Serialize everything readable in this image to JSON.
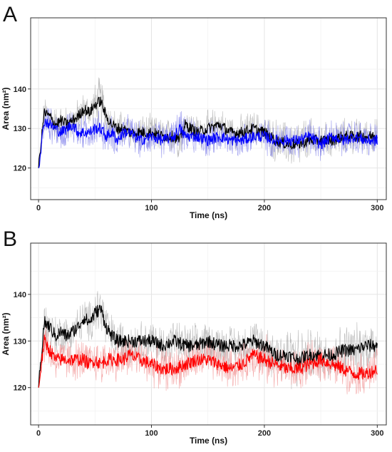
{
  "chart_data": [
    {
      "type": "line",
      "panel_label": "A",
      "xlabel": "Time (ns)",
      "ylabel": "Area (nm²)",
      "xlim": [
        -7,
        308
      ],
      "ylim": [
        112,
        158
      ],
      "xticks": [
        0,
        100,
        200,
        300
      ],
      "yticks": [
        120,
        130,
        140
      ],
      "grid": true,
      "legend": "none",
      "series": [
        {
          "color": "#000000",
          "shade_color": "#a6a6a6",
          "x": [
            0,
            5,
            10,
            15,
            20,
            25,
            30,
            35,
            40,
            45,
            50,
            55,
            60,
            65,
            70,
            75,
            80,
            90,
            100,
            110,
            120,
            125,
            130,
            140,
            150,
            160,
            170,
            180,
            190,
            200,
            210,
            220,
            230,
            240,
            250,
            260,
            270,
            280,
            290,
            300
          ],
          "values": [
            120,
            134,
            133,
            131,
            132,
            131,
            132,
            133,
            135,
            134,
            136,
            137,
            133,
            131,
            130,
            130,
            129,
            129,
            129,
            128,
            128,
            127,
            131,
            129,
            130,
            131,
            129,
            129,
            130,
            129,
            127,
            126,
            126,
            127,
            127,
            127,
            128,
            128,
            128,
            128
          ],
          "band_halfwidth": [
            0,
            4,
            4,
            4,
            4,
            4,
            4,
            4,
            4,
            4,
            5,
            6,
            5,
            4,
            4,
            4,
            4,
            4,
            4,
            4,
            4,
            4,
            4,
            4,
            4,
            4,
            4,
            4,
            4,
            4,
            5,
            5,
            6,
            5,
            4,
            4,
            4,
            4,
            4,
            4
          ]
        },
        {
          "color": "#0000ff",
          "shade_color": "#7777e8",
          "x": [
            0,
            5,
            10,
            15,
            20,
            25,
            30,
            35,
            40,
            45,
            50,
            55,
            60,
            65,
            70,
            75,
            80,
            90,
            100,
            110,
            120,
            125,
            130,
            140,
            150,
            160,
            170,
            180,
            190,
            200,
            210,
            220,
            230,
            240,
            250,
            260,
            270,
            280,
            290,
            300
          ],
          "values": [
            120,
            132,
            131,
            130,
            129,
            130,
            131,
            129,
            129,
            129,
            130,
            130,
            128,
            129,
            127,
            129,
            129,
            127,
            128,
            127,
            128,
            130,
            128,
            128,
            127,
            128,
            127,
            127,
            128,
            128,
            127,
            127,
            127,
            128,
            126,
            128,
            127,
            128,
            127,
            127
          ],
          "band_halfwidth": [
            0,
            4,
            4,
            4,
            4,
            4,
            4,
            4,
            4,
            4,
            4,
            4,
            4,
            4,
            4,
            4,
            4,
            4,
            4,
            4,
            4,
            5,
            4,
            4,
            4,
            4,
            4,
            4,
            4,
            4,
            4,
            4,
            4,
            4,
            4,
            4,
            4,
            4,
            4,
            4
          ]
        }
      ]
    },
    {
      "type": "line",
      "panel_label": "B",
      "xlabel": "Time (ns)",
      "ylabel": "Area (nm²)",
      "xlim": [
        -7,
        308
      ],
      "ylim": [
        112,
        151
      ],
      "xticks": [
        0,
        100,
        200,
        300
      ],
      "yticks": [
        120,
        130,
        140
      ],
      "grid": true,
      "legend": "none",
      "series": [
        {
          "color": "#000000",
          "shade_color": "#a6a6a6",
          "x": [
            0,
            5,
            10,
            15,
            20,
            25,
            30,
            35,
            40,
            45,
            50,
            55,
            60,
            65,
            70,
            75,
            80,
            90,
            100,
            110,
            120,
            130,
            140,
            150,
            160,
            170,
            180,
            190,
            200,
            210,
            220,
            230,
            240,
            250,
            260,
            270,
            280,
            290,
            300
          ],
          "values": [
            120,
            134,
            133,
            131,
            132,
            131,
            132,
            133,
            135,
            134,
            136,
            137,
            133,
            131,
            130,
            130,
            130,
            130,
            130,
            129,
            130,
            129,
            129,
            130,
            129,
            129,
            129,
            130,
            129,
            127,
            127,
            126,
            127,
            127,
            127,
            128,
            128,
            129,
            129
          ],
          "band_halfwidth": [
            0,
            4,
            4,
            4,
            4,
            4,
            4,
            4,
            4,
            4,
            5,
            6,
            5,
            4,
            4,
            4,
            4,
            4,
            4,
            4,
            4,
            4,
            4,
            4,
            4,
            4,
            4,
            4,
            5,
            5,
            6,
            6,
            5,
            5,
            5,
            5,
            5,
            5,
            5
          ]
        },
        {
          "color": "#ff0000",
          "shade_color": "#f08a8a",
          "x": [
            0,
            5,
            10,
            15,
            20,
            25,
            30,
            35,
            40,
            45,
            50,
            55,
            60,
            65,
            70,
            75,
            80,
            90,
            100,
            110,
            120,
            130,
            140,
            150,
            160,
            170,
            180,
            190,
            200,
            210,
            220,
            230,
            240,
            250,
            260,
            270,
            280,
            290,
            300
          ],
          "values": [
            120,
            130,
            128,
            126,
            126,
            126,
            126,
            126,
            126,
            125,
            126,
            125,
            126,
            126,
            126,
            126,
            127,
            126,
            125,
            124,
            124,
            125,
            126,
            126,
            125,
            124,
            125,
            127,
            126,
            125,
            124,
            124,
            125,
            126,
            125,
            124,
            123,
            123,
            124
          ],
          "band_halfwidth": [
            0,
            4,
            4,
            4,
            4,
            4,
            4,
            4,
            4,
            4,
            4,
            4,
            4,
            4,
            4,
            4,
            4,
            4,
            4,
            4,
            4,
            4,
            4,
            4,
            4,
            4,
            4,
            4,
            5,
            4,
            4,
            4,
            4,
            4,
            4,
            4,
            4,
            4,
            4
          ]
        }
      ]
    }
  ]
}
